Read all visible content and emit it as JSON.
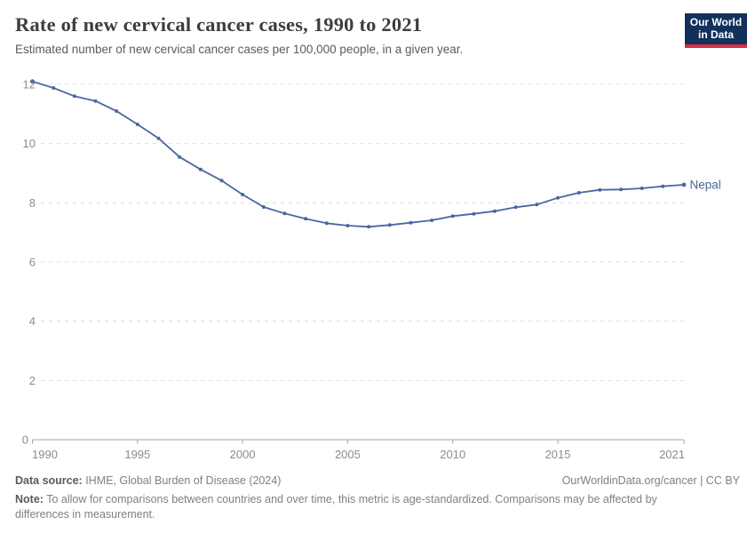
{
  "header": {
    "title": "Rate of new cervical cancer cases, 1990 to 2021",
    "subtitle": "Estimated number of new cervical cancer cases per 100,000 people, in a given year.",
    "logo": {
      "line1": "Our World",
      "line2": "in Data",
      "bg_color": "#12305b",
      "accent_color": "#dc2e41"
    }
  },
  "chart_data": {
    "type": "line",
    "title": "Rate of new cervical cancer cases, 1990 to 2021",
    "xlabel": "",
    "ylabel": "",
    "x": [
      1990,
      1991,
      1992,
      1993,
      1994,
      1995,
      1996,
      1997,
      1998,
      1999,
      2000,
      2001,
      2002,
      2003,
      2004,
      2005,
      2006,
      2007,
      2008,
      2009,
      2010,
      2011,
      2012,
      2013,
      2014,
      2015,
      2016,
      2017,
      2018,
      2019,
      2020,
      2021
    ],
    "series": [
      {
        "name": "Nepal",
        "color": "#4a67a0",
        "values": [
          12.1,
          11.88,
          11.6,
          11.44,
          11.1,
          10.65,
          10.18,
          9.55,
          9.13,
          8.75,
          8.28,
          7.86,
          7.64,
          7.46,
          7.31,
          7.23,
          7.19,
          7.25,
          7.33,
          7.41,
          7.55,
          7.63,
          7.72,
          7.85,
          7.94,
          8.17,
          8.34,
          8.44,
          8.45,
          8.49,
          8.56,
          8.61
        ]
      }
    ],
    "x_ticks": [
      1990,
      1995,
      2000,
      2005,
      2010,
      2015,
      2021
    ],
    "y_ticks": [
      0,
      2,
      4,
      6,
      8,
      10,
      12
    ],
    "xlim": [
      1990,
      2021
    ],
    "ylim": [
      0,
      12.45
    ],
    "grid": "horizontal-dashed",
    "grid_color": "#dcdcdc",
    "axis_color": "#a3a3a3",
    "tick_label_color": "#8c8c8c",
    "legend_position": "end-of-line"
  },
  "footer": {
    "datasource_label": "Data source:",
    "datasource": " IHME, Global Burden of Disease (2024)",
    "rights": "OurWorldinData.org/cancer | CC BY",
    "note_label": "Note:",
    "note": " To allow for comparisons between countries and over time, this metric is age-standardized. Comparisons may be affected by differences in measurement."
  }
}
